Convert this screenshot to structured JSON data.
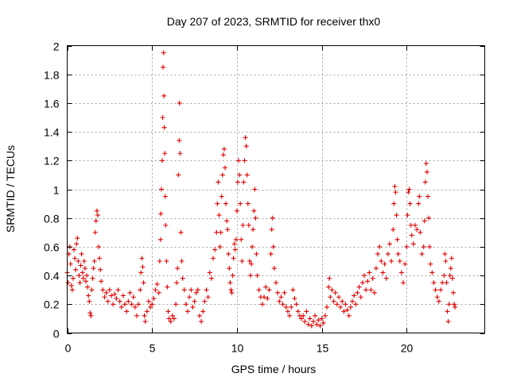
{
  "chart_data": {
    "type": "scatter",
    "title": "Day 207 of 2023, SRMTID for receiver thx0",
    "xlabel": "GPS time / hours",
    "ylabel": "SRMTID / TECUs",
    "xlim": [
      0,
      24.6
    ],
    "ylim": [
      0,
      2
    ],
    "x_ticks": [
      0,
      5,
      10,
      15,
      20
    ],
    "x_tick_labels": [
      "0",
      "5",
      "10",
      "15",
      "20"
    ],
    "y_ticks": [
      0,
      0.2,
      0.4,
      0.6,
      0.8,
      1,
      1.2,
      1.4,
      1.6,
      1.8,
      2
    ],
    "y_tick_labels": [
      "0",
      "0.2",
      "0.4",
      "0.6",
      "0.8",
      "1",
      "1.2",
      "1.4",
      "1.6",
      "1.8",
      "2"
    ],
    "grid": true,
    "marker": "+",
    "color": "#e00000",
    "series": [
      {
        "name": "SRMTID",
        "points": [
          [
            0.0,
            0.42
          ],
          [
            0.05,
            0.35
          ],
          [
            0.1,
            0.55
          ],
          [
            0.15,
            0.6
          ],
          [
            0.2,
            0.48
          ],
          [
            0.25,
            0.33
          ],
          [
            0.3,
            0.3
          ],
          [
            0.35,
            0.38
          ],
          [
            0.4,
            0.58
          ],
          [
            0.45,
            0.52
          ],
          [
            0.5,
            0.44
          ],
          [
            0.55,
            0.62
          ],
          [
            0.6,
            0.66
          ],
          [
            0.65,
            0.5
          ],
          [
            0.7,
            0.4
          ],
          [
            0.75,
            0.35
          ],
          [
            0.8,
            0.47
          ],
          [
            0.85,
            0.55
          ],
          [
            0.9,
            0.42
          ],
          [
            0.95,
            0.38
          ],
          [
            1.0,
            0.5
          ],
          [
            1.05,
            0.45
          ],
          [
            1.1,
            0.36
          ],
          [
            1.15,
            0.4
          ],
          [
            1.2,
            0.32
          ],
          [
            1.25,
            0.26
          ],
          [
            1.3,
            0.22
          ],
          [
            1.35,
            0.14
          ],
          [
            1.4,
            0.12
          ],
          [
            1.45,
            0.3
          ],
          [
            1.5,
            0.38
          ],
          [
            1.55,
            0.45
          ],
          [
            1.6,
            0.5
          ],
          [
            1.65,
            0.7
          ],
          [
            1.7,
            0.78
          ],
          [
            1.75,
            0.85
          ],
          [
            1.8,
            0.82
          ],
          [
            1.85,
            0.6
          ],
          [
            1.9,
            0.52
          ],
          [
            1.95,
            0.44
          ],
          [
            2.0,
            0.36
          ],
          [
            2.1,
            0.3
          ],
          [
            2.2,
            0.25
          ],
          [
            2.3,
            0.28
          ],
          [
            2.4,
            0.22
          ],
          [
            2.5,
            0.3
          ],
          [
            2.6,
            0.26
          ],
          [
            2.7,
            0.2
          ],
          [
            2.8,
            0.27
          ],
          [
            2.9,
            0.24
          ],
          [
            3.0,
            0.3
          ],
          [
            3.1,
            0.22
          ],
          [
            3.2,
            0.18
          ],
          [
            3.3,
            0.26
          ],
          [
            3.4,
            0.2
          ],
          [
            3.5,
            0.15
          ],
          [
            3.6,
            0.22
          ],
          [
            3.7,
            0.28
          ],
          [
            3.8,
            0.2
          ],
          [
            3.9,
            0.25
          ],
          [
            4.0,
            0.18
          ],
          [
            4.1,
            0.12
          ],
          [
            4.2,
            0.2
          ],
          [
            4.3,
            0.3
          ],
          [
            4.35,
            0.42
          ],
          [
            4.4,
            0.52
          ],
          [
            4.45,
            0.46
          ],
          [
            4.5,
            0.35
          ],
          [
            4.55,
            0.12
          ],
          [
            4.6,
            0.08
          ],
          [
            4.7,
            0.15
          ],
          [
            4.8,
            0.22
          ],
          [
            4.9,
            0.18
          ],
          [
            5.0,
            0.2
          ],
          [
            5.1,
            0.24
          ],
          [
            5.2,
            0.3
          ],
          [
            5.3,
            0.34
          ],
          [
            5.4,
            0.28
          ],
          [
            5.45,
            0.5
          ],
          [
            5.5,
            0.65
          ],
          [
            5.52,
            0.83
          ],
          [
            5.55,
            1.0
          ],
          [
            5.6,
            1.2
          ],
          [
            5.62,
            1.5
          ],
          [
            5.65,
            1.85
          ],
          [
            5.68,
            1.95
          ],
          [
            5.7,
            1.65
          ],
          [
            5.72,
            1.43
          ],
          [
            5.75,
            1.25
          ],
          [
            5.78,
            0.95
          ],
          [
            5.8,
            0.75
          ],
          [
            5.85,
            0.5
          ],
          [
            5.9,
            0.32
          ],
          [
            5.95,
            0.15
          ],
          [
            6.0,
            0.1
          ],
          [
            6.1,
            0.08
          ],
          [
            6.2,
            0.12
          ],
          [
            6.3,
            0.1
          ],
          [
            6.4,
            0.2
          ],
          [
            6.45,
            0.35
          ],
          [
            6.5,
            0.45
          ],
          [
            6.55,
            1.1
          ],
          [
            6.6,
            1.34
          ],
          [
            6.62,
            1.6
          ],
          [
            6.65,
            1.25
          ],
          [
            6.7,
            0.7
          ],
          [
            6.75,
            0.5
          ],
          [
            6.8,
            0.38
          ],
          [
            6.9,
            0.3
          ],
          [
            7.0,
            0.2
          ],
          [
            7.1,
            0.15
          ],
          [
            7.2,
            0.25
          ],
          [
            7.3,
            0.3
          ],
          [
            7.4,
            0.18
          ],
          [
            7.5,
            0.22
          ],
          [
            7.6,
            0.28
          ],
          [
            7.7,
            0.3
          ],
          [
            7.8,
            0.12
          ],
          [
            7.9,
            0.08
          ],
          [
            8.0,
            0.15
          ],
          [
            8.1,
            0.22
          ],
          [
            8.2,
            0.3
          ],
          [
            8.3,
            0.25
          ],
          [
            8.4,
            0.42
          ],
          [
            8.5,
            0.38
          ],
          [
            8.6,
            0.52
          ],
          [
            8.7,
            0.58
          ],
          [
            8.8,
            0.7
          ],
          [
            8.85,
            0.9
          ],
          [
            8.9,
            1.05
          ],
          [
            8.95,
            0.82
          ],
          [
            9.0,
            0.6
          ],
          [
            9.05,
            0.7
          ],
          [
            9.1,
            0.95
          ],
          [
            9.15,
            1.1
          ],
          [
            9.2,
            1.24
          ],
          [
            9.25,
            1.28
          ],
          [
            9.3,
            1.15
          ],
          [
            9.35,
            0.9
          ],
          [
            9.4,
            0.78
          ],
          [
            9.45,
            0.72
          ],
          [
            9.5,
            0.55
          ],
          [
            9.55,
            0.45
          ],
          [
            9.6,
            0.35
          ],
          [
            9.65,
            0.3
          ],
          [
            9.7,
            0.28
          ],
          [
            9.75,
            0.4
          ],
          [
            9.8,
            0.52
          ],
          [
            9.85,
            0.62
          ],
          [
            9.9,
            0.58
          ],
          [
            9.95,
            0.65
          ],
          [
            10.0,
            0.85
          ],
          [
            10.05,
            1.05
          ],
          [
            10.1,
            1.2
          ],
          [
            10.15,
            1.1
          ],
          [
            10.2,
            0.9
          ],
          [
            10.25,
            0.65
          ],
          [
            10.3,
            0.5
          ],
          [
            10.35,
            0.75
          ],
          [
            10.4,
            1.05
          ],
          [
            10.45,
            1.2
          ],
          [
            10.5,
            1.36
          ],
          [
            10.55,
            1.3
          ],
          [
            10.6,
            1.1
          ],
          [
            10.65,
            0.9
          ],
          [
            10.7,
            0.75
          ],
          [
            10.75,
            0.5
          ],
          [
            10.8,
            0.4
          ],
          [
            10.85,
            0.48
          ],
          [
            10.9,
            0.6
          ],
          [
            10.95,
            0.72
          ],
          [
            11.0,
            0.85
          ],
          [
            11.05,
            1.0
          ],
          [
            11.1,
            0.8
          ],
          [
            11.15,
            0.55
          ],
          [
            11.2,
            0.4
          ],
          [
            11.3,
            0.3
          ],
          [
            11.4,
            0.25
          ],
          [
            11.5,
            0.2
          ],
          [
            11.6,
            0.25
          ],
          [
            11.7,
            0.32
          ],
          [
            11.8,
            0.24
          ],
          [
            11.9,
            0.3
          ],
          [
            12.0,
            0.55
          ],
          [
            12.05,
            0.72
          ],
          [
            12.1,
            0.8
          ],
          [
            12.15,
            0.6
          ],
          [
            12.2,
            0.45
          ],
          [
            12.3,
            0.35
          ],
          [
            12.4,
            0.28
          ],
          [
            12.5,
            0.22
          ],
          [
            12.6,
            0.25
          ],
          [
            12.7,
            0.2
          ],
          [
            12.8,
            0.28
          ],
          [
            12.9,
            0.18
          ],
          [
            13.0,
            0.15
          ],
          [
            13.1,
            0.12
          ],
          [
            13.2,
            0.18
          ],
          [
            13.3,
            0.3
          ],
          [
            13.4,
            0.24
          ],
          [
            13.5,
            0.2
          ],
          [
            13.6,
            0.15
          ],
          [
            13.7,
            0.12
          ],
          [
            13.8,
            0.1
          ],
          [
            13.9,
            0.12
          ],
          [
            14.0,
            0.08
          ],
          [
            14.1,
            0.15
          ],
          [
            14.2,
            0.06
          ],
          [
            14.3,
            0.1
          ],
          [
            14.4,
            0.05
          ],
          [
            14.5,
            0.08
          ],
          [
            14.6,
            0.12
          ],
          [
            14.7,
            0.06
          ],
          [
            14.8,
            0.09
          ],
          [
            14.9,
            0.05
          ],
          [
            15.0,
            0.1
          ],
          [
            15.1,
            0.07
          ],
          [
            15.2,
            0.12
          ],
          [
            15.3,
            0.18
          ],
          [
            15.4,
            0.32
          ],
          [
            15.45,
            0.38
          ],
          [
            15.5,
            0.25
          ],
          [
            15.6,
            0.3
          ],
          [
            15.7,
            0.22
          ],
          [
            15.8,
            0.28
          ],
          [
            15.9,
            0.2
          ],
          [
            16.0,
            0.25
          ],
          [
            16.1,
            0.18
          ],
          [
            16.2,
            0.22
          ],
          [
            16.3,
            0.15
          ],
          [
            16.4,
            0.2
          ],
          [
            16.5,
            0.16
          ],
          [
            16.6,
            0.12
          ],
          [
            16.7,
            0.18
          ],
          [
            16.8,
            0.22
          ],
          [
            16.9,
            0.26
          ],
          [
            17.0,
            0.2
          ],
          [
            17.1,
            0.28
          ],
          [
            17.2,
            0.32
          ],
          [
            17.3,
            0.25
          ],
          [
            17.4,
            0.35
          ],
          [
            17.5,
            0.4
          ],
          [
            17.6,
            0.3
          ],
          [
            17.7,
            0.36
          ],
          [
            17.8,
            0.42
          ],
          [
            17.9,
            0.3
          ],
          [
            18.0,
            0.38
          ],
          [
            18.1,
            0.28
          ],
          [
            18.2,
            0.45
          ],
          [
            18.3,
            0.55
          ],
          [
            18.4,
            0.6
          ],
          [
            18.5,
            0.5
          ],
          [
            18.6,
            0.42
          ],
          [
            18.7,
            0.48
          ],
          [
            18.8,
            0.38
          ],
          [
            18.9,
            0.55
          ],
          [
            19.0,
            0.62
          ],
          [
            19.1,
            0.5
          ],
          [
            19.2,
            0.72
          ],
          [
            19.25,
            0.9
          ],
          [
            19.3,
            1.02
          ],
          [
            19.35,
            0.98
          ],
          [
            19.4,
            0.82
          ],
          [
            19.45,
            0.65
          ],
          [
            19.5,
            0.55
          ],
          [
            19.6,
            0.5
          ],
          [
            19.7,
            0.42
          ],
          [
            19.8,
            0.35
          ],
          [
            19.9,
            0.48
          ],
          [
            20.0,
            0.6
          ],
          [
            20.05,
            0.82
          ],
          [
            20.1,
            0.98
          ],
          [
            20.15,
            1.0
          ],
          [
            20.2,
            0.9
          ],
          [
            20.25,
            0.75
          ],
          [
            20.3,
            0.68
          ],
          [
            20.4,
            0.62
          ],
          [
            20.5,
            0.75
          ],
          [
            20.6,
            0.72
          ],
          [
            20.7,
            0.9
          ],
          [
            20.75,
            0.95
          ],
          [
            20.8,
            0.7
          ],
          [
            20.9,
            0.55
          ],
          [
            21.0,
            0.6
          ],
          [
            21.05,
            0.78
          ],
          [
            21.1,
            1.05
          ],
          [
            21.15,
            1.18
          ],
          [
            21.2,
            1.12
          ],
          [
            21.25,
            0.95
          ],
          [
            21.3,
            0.8
          ],
          [
            21.35,
            0.6
          ],
          [
            21.4,
            0.48
          ],
          [
            21.5,
            0.42
          ],
          [
            21.6,
            0.35
          ],
          [
            21.7,
            0.3
          ],
          [
            21.8,
            0.25
          ],
          [
            21.9,
            0.22
          ],
          [
            22.0,
            0.3
          ],
          [
            22.1,
            0.35
          ],
          [
            22.2,
            0.4
          ],
          [
            22.25,
            0.55
          ],
          [
            22.3,
            0.5
          ],
          [
            22.35,
            0.35
          ],
          [
            22.4,
            0.15
          ],
          [
            22.45,
            0.08
          ],
          [
            22.5,
            0.2
          ],
          [
            22.55,
            0.4
          ],
          [
            22.6,
            0.45
          ],
          [
            22.65,
            0.52
          ],
          [
            22.7,
            0.38
          ],
          [
            22.75,
            0.28
          ],
          [
            22.8,
            0.2
          ],
          [
            22.85,
            0.18
          ]
        ]
      }
    ]
  }
}
